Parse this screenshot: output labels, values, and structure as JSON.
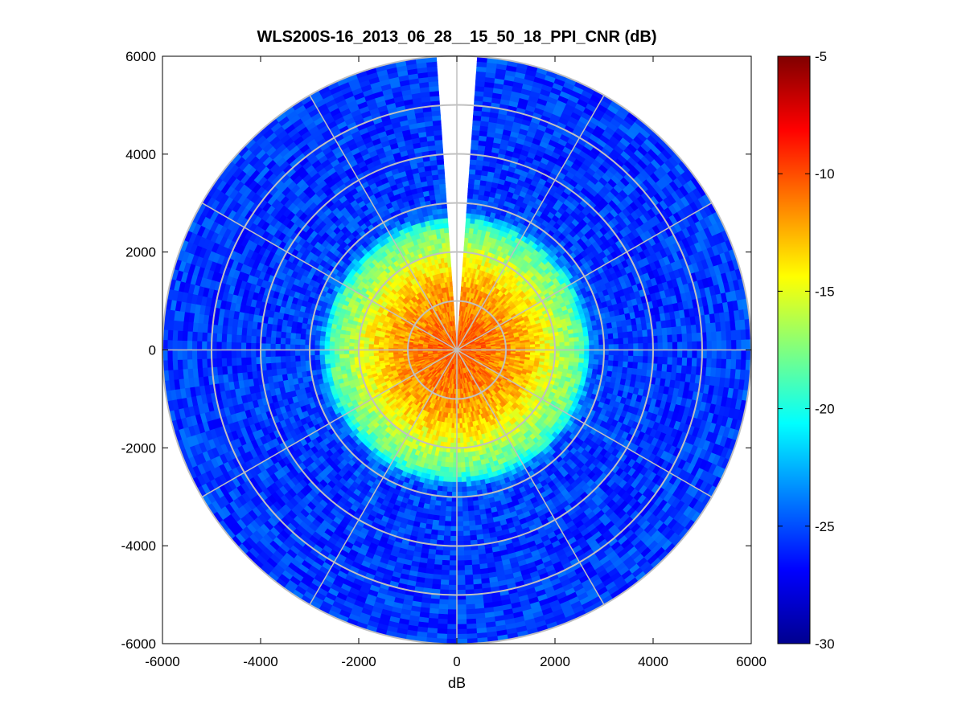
{
  "chart_data": {
    "type": "heatmap",
    "subtype": "polar-ppi",
    "title": "WLS200S-16_2013_06_28__15_50_18_PPI_CNR (dB)",
    "xlabel": "dB",
    "ylabel": "",
    "xlim": [
      -6000,
      6000
    ],
    "ylim": [
      -6000,
      6000
    ],
    "xticks": [
      -6000,
      -4000,
      -2000,
      0,
      2000,
      4000,
      6000
    ],
    "yticks": [
      -6000,
      -4000,
      -2000,
      0,
      2000,
      4000,
      6000
    ],
    "max_range": 6000,
    "range_gate_step": 100,
    "azimuth_step_deg": 2,
    "missing_sector_deg": [
      -4,
      4
    ],
    "polar_grid": {
      "range_rings": [
        1000,
        2000,
        3000,
        4000,
        5000,
        6000
      ],
      "spoke_angles_deg": [
        0,
        30,
        60,
        90,
        120,
        150,
        180,
        210,
        240,
        270,
        300,
        330
      ]
    },
    "colorbar": {
      "colormap": "jet",
      "clim": [
        -30,
        -5
      ],
      "ticks": [
        -30,
        -25,
        -20,
        -15,
        -10,
        -5
      ]
    },
    "cnr_profile": {
      "range": [
        0,
        300,
        600,
        900,
        1200,
        1500,
        1800,
        2000,
        2200,
        2400,
        2600,
        2700,
        2800,
        3000,
        4000,
        5000,
        6000
      ],
      "value": [
        -10.5,
        -10.5,
        -11,
        -11.5,
        -12,
        -13,
        -14.5,
        -15.5,
        -17,
        -17.5,
        -19.5,
        -22,
        -24.5,
        -25.3,
        -25.6,
        -25.6,
        -25.4
      ]
    },
    "noise_amplitude_db": 1.5,
    "grid": true
  }
}
